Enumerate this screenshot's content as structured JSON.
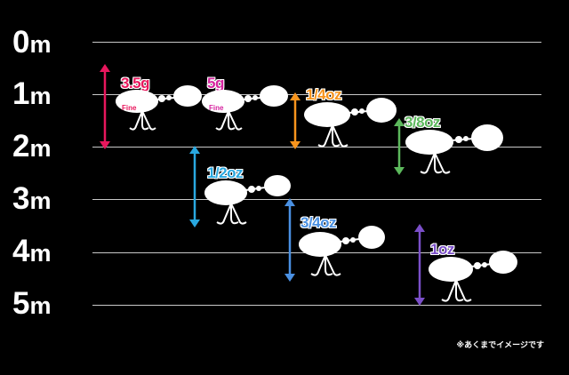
{
  "depth_scale": {
    "unit": "m",
    "marks": [
      {
        "value": "0",
        "unit": "m"
      },
      {
        "value": "1",
        "unit": "m"
      },
      {
        "value": "2",
        "unit": "m"
      },
      {
        "value": "3",
        "unit": "m"
      },
      {
        "value": "4",
        "unit": "m"
      },
      {
        "value": "5",
        "unit": "m"
      }
    ]
  },
  "lures": [
    {
      "weight": "3.5g",
      "tag": "Fine",
      "color": "#e8175d",
      "range_m": [
        0.3,
        1.9
      ]
    },
    {
      "weight": "5g",
      "tag": "Fine",
      "color": "#d6249f",
      "range_m": null
    },
    {
      "weight": "1/4oz",
      "color": "#f7941d",
      "range_m": [
        0.9,
        1.9
      ]
    },
    {
      "weight": "3/8oz",
      "color": "#5cb85c",
      "range_m": [
        1.4,
        2.4
      ]
    },
    {
      "weight": "1/2oz",
      "color": "#29a8e0",
      "range_m": [
        1.9,
        3.5
      ]
    },
    {
      "weight": "3/4oz",
      "color": "#4a90e2",
      "range_m": [
        2.9,
        4.5
      ]
    },
    {
      "weight": "1oz",
      "color": "#7b4fc9",
      "range_m": [
        3.7,
        5.0
      ]
    }
  ],
  "footnote": "※あくまでイメージです"
}
